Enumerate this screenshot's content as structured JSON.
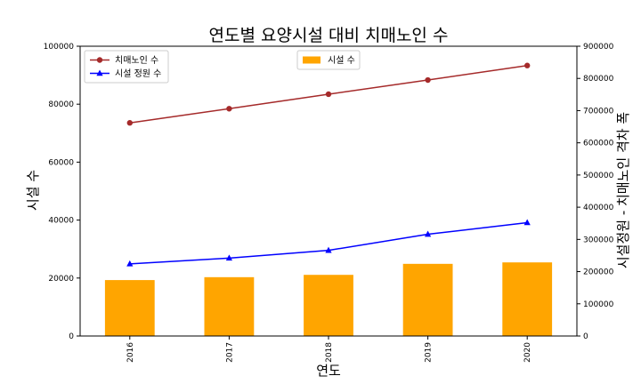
{
  "chart_data": {
    "type": "bar",
    "title": "연도별 요양시설 대비 치매노인 수",
    "xlabel": "연도",
    "ylabel_left": "시설 수",
    "ylabel_right": "시설정원 - 치매노인 격차 폭",
    "categories": [
      "2016",
      "2017",
      "2018",
      "2019",
      "2020"
    ],
    "left_axis": {
      "ylim": [
        0,
        100000
      ],
      "ticks": [
        0,
        20000,
        40000,
        60000,
        80000,
        100000
      ],
      "tick_labels": [
        "0",
        "20000",
        "40000",
        "60000",
        "80000",
        "100000"
      ]
    },
    "right_axis": {
      "ylim": [
        0,
        900000
      ],
      "ticks": [
        0,
        100000,
        200000,
        300000,
        400000,
        500000,
        600000,
        700000,
        800000,
        900000
      ],
      "tick_labels": [
        "0",
        "100000",
        "200000",
        "300000",
        "400000",
        "500000",
        "600000",
        "700000",
        "800000",
        "900000"
      ]
    },
    "series": [
      {
        "name": "시설 수",
        "type": "bar",
        "axis": "left",
        "color": "#ffa500",
        "values": [
          19300,
          20300,
          21100,
          24900,
          25400
        ]
      },
      {
        "name": "치매노인 수",
        "type": "line",
        "axis": "right",
        "color": "#a52a2a",
        "marker": "circle",
        "values": [
          662000,
          706000,
          751000,
          795000,
          840000
        ]
      },
      {
        "name": "시설 정원 수",
        "type": "line",
        "axis": "right",
        "color": "#0000ff",
        "marker": "triangle",
        "values": [
          224000,
          242000,
          266000,
          316000,
          352000
        ]
      }
    ],
    "legends": [
      {
        "placement": "upper-left",
        "entries": [
          "치매노인 수",
          "시설 정원 수"
        ]
      },
      {
        "placement": "upper-center",
        "entries": [
          "시설 수"
        ]
      }
    ],
    "grid": false
  }
}
